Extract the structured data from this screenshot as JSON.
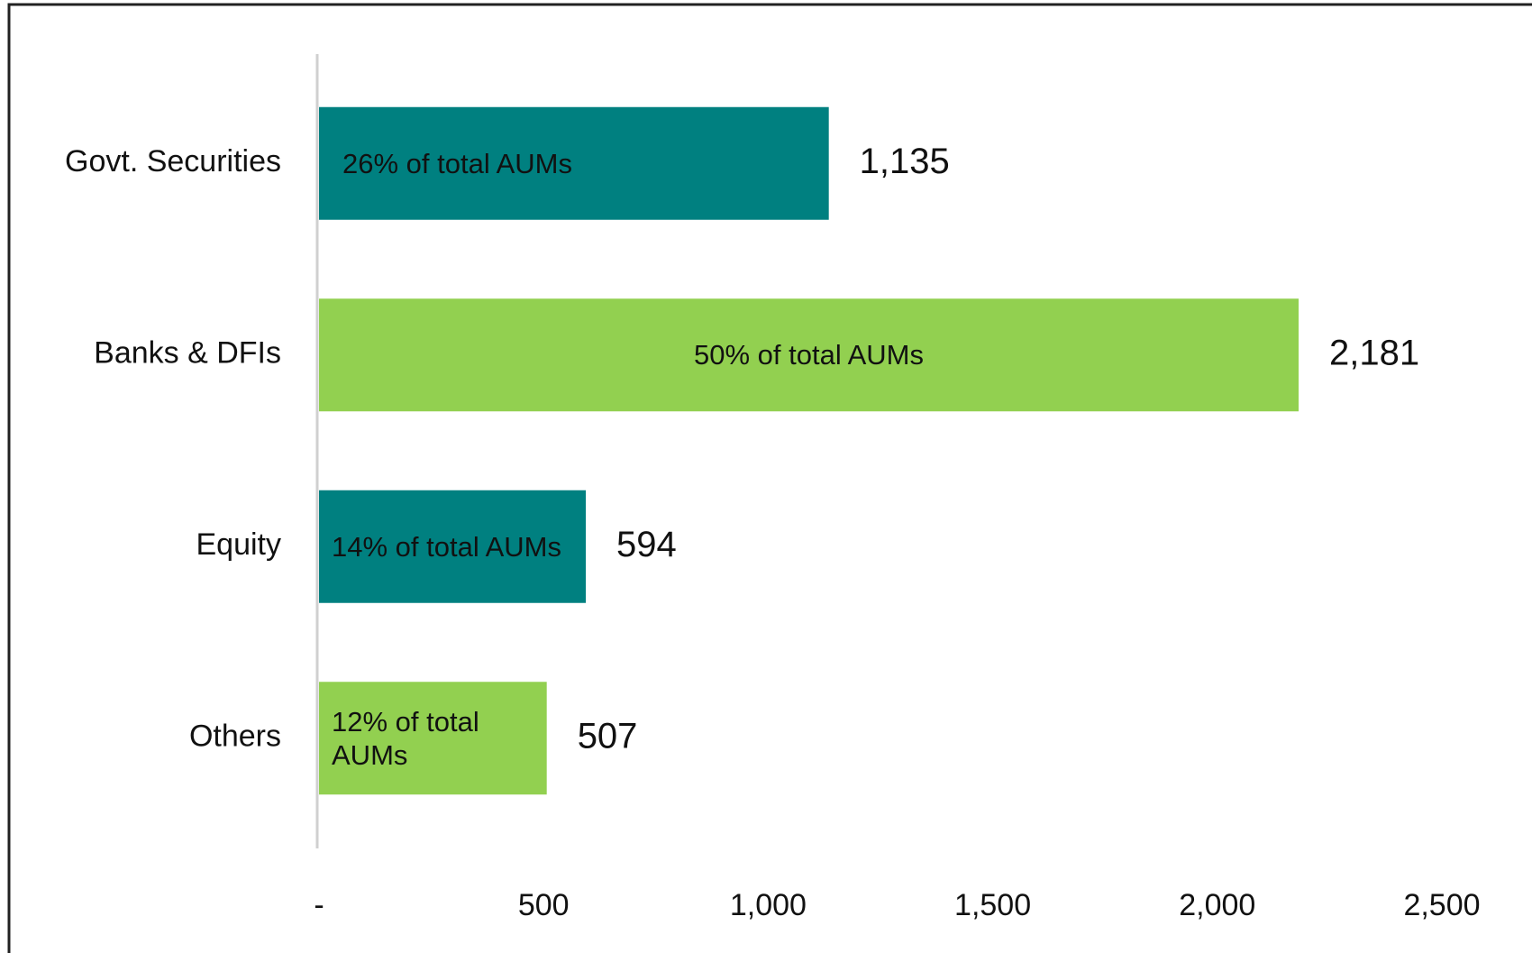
{
  "chart_data": {
    "type": "bar",
    "orientation": "horizontal",
    "categories": [
      "Govt. Securities",
      "Banks & DFIs",
      "Equity",
      "Others"
    ],
    "values": [
      1135,
      2181,
      594,
      507
    ],
    "value_labels": [
      "1,135",
      "2,181",
      "594",
      "507"
    ],
    "colors": [
      "#008080",
      "#92d050",
      "#008080",
      "#92d050"
    ],
    "annotations": [
      "26% of total AUMs",
      "50% of total AUMs",
      "14% of total AUMs",
      "12% of total AUMs"
    ],
    "xlim": [
      0,
      2500
    ],
    "xticks": [
      {
        "value": 0,
        "label": "-"
      },
      500,
      {
        "value": 1000,
        "label": "1,000"
      },
      {
        "value": 1500,
        "label": "1,500"
      },
      {
        "value": 2000,
        "label": "2,000"
      },
      {
        "value": 2500,
        "label": "2,500"
      }
    ],
    "grid": false
  }
}
